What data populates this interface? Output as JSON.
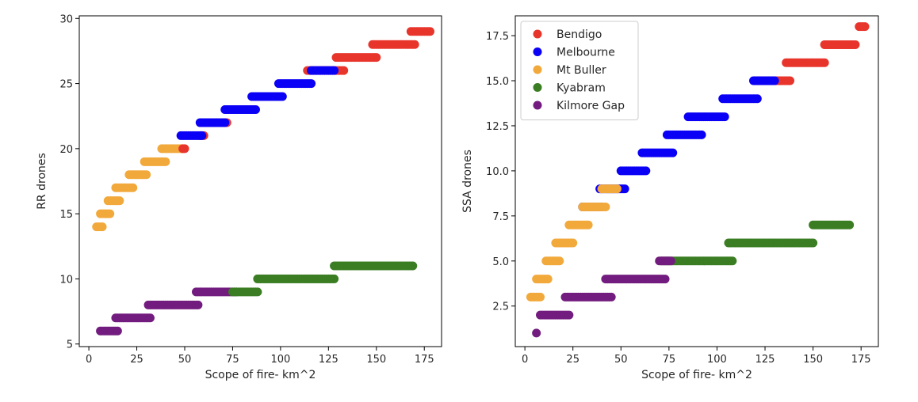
{
  "colors": {
    "Bendigo": "#e8352b",
    "Melbourne": "#0a00f5",
    "Mt Buller": "#f2a93b",
    "Kyabram": "#3a7d22",
    "Kilmore Gap": "#731c7f"
  },
  "chart_data": [
    {
      "type": "scatter",
      "xlabel": "Scope of fire- km^2",
      "ylabel": "RR drones",
      "xlim": [
        -5,
        184
      ],
      "ylim": [
        4.8,
        30.2
      ],
      "xticks": [
        0,
        25,
        50,
        75,
        100,
        125,
        150,
        175
      ],
      "yticks": [
        5,
        10,
        15,
        20,
        25,
        30
      ],
      "legend": null,
      "series": [
        {
          "name": "Mt Buller",
          "segments": [
            [
              4,
              7,
              14
            ],
            [
              6,
              11,
              15
            ],
            [
              10,
              16,
              16
            ],
            [
              14,
              23,
              17
            ],
            [
              21,
              30,
              18
            ],
            [
              29,
              40,
              19
            ],
            [
              38,
              49,
              20
            ]
          ]
        },
        {
          "name": "Bendigo",
          "segments": [
            [
              49,
              50,
              20
            ],
            [
              58,
              60,
              21
            ],
            [
              71,
              72,
              22
            ],
            [
              114,
              133,
              26
            ],
            [
              129,
              150,
              27
            ],
            [
              148,
              170,
              28
            ],
            [
              168,
              178,
              29
            ]
          ]
        },
        {
          "name": "Melbourne",
          "segments": [
            [
              48,
              59,
              21
            ],
            [
              58,
              71,
              22
            ],
            [
              71,
              87,
              23
            ],
            [
              85,
              101,
              24
            ],
            [
              99,
              116,
              25
            ],
            [
              116,
              128,
              26
            ]
          ]
        },
        {
          "name": "Kilmore Gap",
          "segments": [
            [
              6,
              15,
              6
            ],
            [
              14,
              32,
              7
            ],
            [
              31,
              57,
              8
            ],
            [
              56,
              77,
              9
            ]
          ]
        },
        {
          "name": "Kyabram",
          "segments": [
            [
              75,
              88,
              9
            ],
            [
              88,
              128,
              10
            ],
            [
              128,
              169,
              11
            ]
          ]
        }
      ]
    },
    {
      "type": "scatter",
      "xlabel": "Scope of fire- km^2",
      "ylabel": "SSA drones",
      "xlim": [
        -5,
        184
      ],
      "ylim": [
        0.25,
        18.6
      ],
      "xticks": [
        0,
        25,
        50,
        75,
        100,
        125,
        150,
        175
      ],
      "yticks": [
        2.5,
        5.0,
        7.5,
        10.0,
        12.5,
        15.0,
        17.5
      ],
      "legend": "top-left",
      "legend_order": [
        "Bendigo",
        "Melbourne",
        "Mt Buller",
        "Kyabram",
        "Kilmore Gap"
      ],
      "series": [
        {
          "name": "Bendigo",
          "segments": [
            [
              120,
              138,
              15
            ],
            [
              136,
              156,
              16
            ],
            [
              156,
              172,
              17
            ],
            [
              174,
              177,
              18
            ]
          ]
        },
        {
          "name": "Melbourne",
          "segments": [
            [
              30,
              40,
              8
            ],
            [
              39,
              52,
              9
            ],
            [
              50,
              63,
              10
            ],
            [
              61,
              77,
              11
            ],
            [
              74,
              92,
              12
            ],
            [
              85,
              104,
              13
            ],
            [
              103,
              121,
              14
            ],
            [
              119,
              130,
              15
            ]
          ]
        },
        {
          "name": "Mt Buller",
          "segments": [
            [
              3,
              8,
              3
            ],
            [
              6,
              12,
              4
            ],
            [
              11,
              18,
              5
            ],
            [
              16,
              25,
              6
            ],
            [
              23,
              33,
              7
            ],
            [
              30,
              42,
              8
            ],
            [
              40,
              48,
              9
            ]
          ]
        },
        {
          "name": "Kyabram",
          "segments": [
            [
              71,
              108,
              5
            ],
            [
              106,
              150,
              6
            ],
            [
              150,
              169,
              7
            ]
          ]
        },
        {
          "name": "Kilmore Gap",
          "segments": [
            [
              6,
              6,
              1
            ],
            [
              8,
              23,
              2
            ],
            [
              21,
              45,
              3
            ],
            [
              42,
              73,
              4
            ],
            [
              70,
              76,
              5
            ]
          ]
        }
      ]
    }
  ]
}
